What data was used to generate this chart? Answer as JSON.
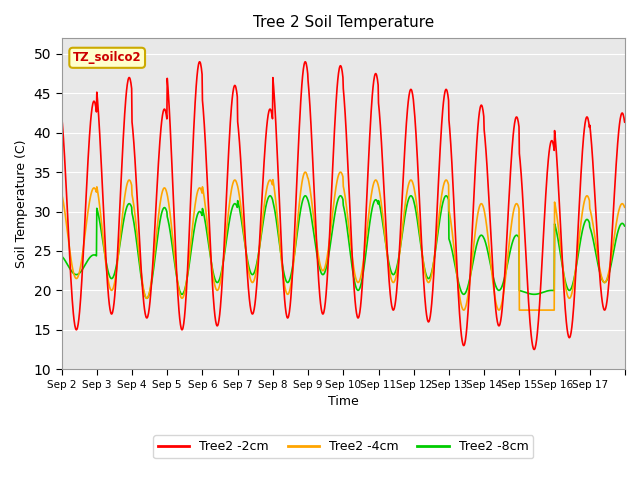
{
  "title": "Tree 2 Soil Temperature",
  "xlabel": "Time",
  "ylabel": "Soil Temperature (C)",
  "ylim": [
    10,
    52
  ],
  "yticks": [
    10,
    15,
    20,
    25,
    30,
    35,
    40,
    45,
    50
  ],
  "background_color": "#e8e8e8",
  "annotation_text": "TZ_soilco2",
  "annotation_bg": "#ffffcc",
  "annotation_border": "#ccaa00",
  "series": {
    "2cm": {
      "color": "#ff0000",
      "label": "Tree2 -2cm",
      "peaks": [
        44,
        47,
        43,
        49,
        46,
        43,
        49,
        48.5,
        47.5,
        45.5,
        45.5,
        43.5,
        42,
        39,
        42,
        42.5
      ],
      "troughs": [
        15,
        17,
        16.5,
        15,
        15.5,
        17,
        16.5,
        17,
        16.5,
        17.5,
        16,
        13,
        15.5,
        12.5,
        14,
        17.5
      ]
    },
    "4cm": {
      "color": "#ffa500",
      "label": "Tree2 -4cm",
      "peaks": [
        33,
        34,
        33,
        33,
        34,
        34,
        35,
        35,
        34,
        34,
        34,
        31,
        31,
        17.5,
        32,
        31
      ],
      "troughs": [
        21.5,
        20,
        19,
        19,
        20,
        21,
        19.5,
        22.5,
        21,
        21,
        21,
        17.5,
        17.5,
        17.5,
        19,
        21
      ]
    },
    "8cm": {
      "color": "#00cc00",
      "label": "Tree2 -8cm",
      "peaks": [
        24.5,
        31,
        30.5,
        30,
        31,
        32,
        32,
        32,
        31.5,
        32,
        32,
        27,
        27,
        20,
        29,
        28.5
      ],
      "troughs": [
        22,
        21.5,
        19,
        19.5,
        21,
        22,
        21,
        22,
        20,
        22,
        21.5,
        19.5,
        20,
        19.5,
        20,
        21
      ]
    }
  },
  "xtick_positions": [
    0,
    1,
    2,
    3,
    4,
    5,
    6,
    7,
    8,
    9,
    10,
    11,
    12,
    13,
    14,
    15,
    16
  ],
  "xtick_labels": [
    "Sep 2",
    "Sep 3",
    "Sep 4",
    "Sep 5",
    "Sep 6",
    "Sep 7",
    "Sep 8",
    "Sep 9",
    "Sep 10",
    "Sep 11",
    "Sep 12",
    "Sep 13",
    "Sep 14",
    "Sep 15",
    "Sep 16",
    "Sep 17",
    ""
  ],
  "n_days": 16
}
